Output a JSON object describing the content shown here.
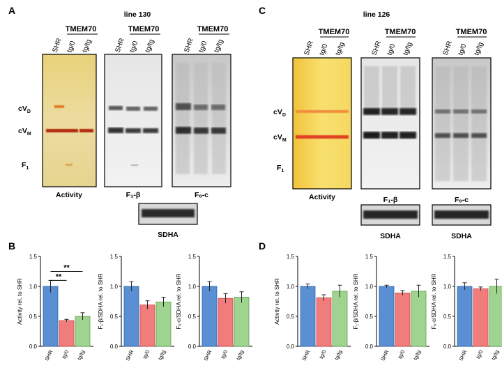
{
  "panel_A": {
    "letter": "A",
    "title": "line 130",
    "lane_group": "TMEM70",
    "lanes": [
      "SHR",
      "tg/0",
      "tg/tg"
    ],
    "band_labels": [
      "cV",
      "cV",
      "F"
    ],
    "band_subscripts": [
      "D",
      "M",
      "1"
    ],
    "blot_captions": [
      "Activity",
      "F₁-β",
      "Fₒ-c"
    ],
    "loading_caption": "SDHA"
  },
  "panel_C": {
    "letter": "C",
    "title": "line 126",
    "lane_group": "TMEM70",
    "lanes": [
      "SHR",
      "tg/0",
      "tg/tg"
    ],
    "band_labels": [
      "cV",
      "cV",
      "F"
    ],
    "band_subscripts": [
      "D",
      "M",
      "1"
    ],
    "blot_captions": [
      "Activity",
      "F₁-β",
      "Fₒ-c"
    ],
    "loading_caption": "SDHA"
  },
  "panel_B": {
    "letter": "B"
  },
  "panel_D": {
    "letter": "D"
  },
  "colors": {
    "SHR": "#5b8fd4",
    "tg0": "#f07c7c",
    "tgtg": "#9fd490",
    "activity_gel": "#f4d44a"
  },
  "chart_data": [
    {
      "type": "bar",
      "panel": "B",
      "categories": [
        "SHR",
        "tg/0",
        "tg/tg"
      ],
      "values": [
        1.0,
        0.43,
        0.5
      ],
      "errors": [
        0.1,
        0.02,
        0.06
      ],
      "ylabel": "Activity rel. to SHR",
      "ylim": [
        0,
        1.5
      ],
      "yticks": [
        "0.0",
        "0.5",
        "1.0",
        "1.5"
      ],
      "significance": [
        "**",
        "**"
      ]
    },
    {
      "type": "bar",
      "panel": "B",
      "categories": [
        "SHR",
        "tg/0",
        "tg/tg"
      ],
      "values": [
        1.0,
        0.69,
        0.74
      ],
      "errors": [
        0.08,
        0.07,
        0.08
      ],
      "ylabel": "F₁-β/SDHA rel. to SHR",
      "ylim": [
        0,
        1.5
      ],
      "yticks": [
        "0.0",
        "0.5",
        "1.0",
        "1.5"
      ]
    },
    {
      "type": "bar",
      "panel": "B",
      "categories": [
        "SHR",
        "tg/0",
        "tg/tg"
      ],
      "values": [
        1.0,
        0.8,
        0.82
      ],
      "errors": [
        0.08,
        0.08,
        0.09
      ],
      "ylabel": "Fₒ-c/SDHA rel. to SHR",
      "ylim": [
        0,
        1.5
      ],
      "yticks": [
        "0.0",
        "0.5",
        "1.0",
        "1.5"
      ]
    },
    {
      "type": "bar",
      "panel": "D",
      "categories": [
        "SHR",
        "tg/0",
        "tg/tg"
      ],
      "values": [
        1.0,
        0.81,
        0.92
      ],
      "errors": [
        0.04,
        0.05,
        0.1
      ],
      "ylabel": "Activity rel. to SHR",
      "ylim": [
        0,
        1.5
      ],
      "yticks": [
        "0.0",
        "0.5",
        "1.0",
        "1.5"
      ]
    },
    {
      "type": "bar",
      "panel": "D",
      "categories": [
        "SHR",
        "tg/0",
        "tg/tg"
      ],
      "values": [
        1.0,
        0.89,
        0.92
      ],
      "errors": [
        0.02,
        0.04,
        0.1
      ],
      "ylabel": "F₁-β/SDHA rel. to SHR",
      "ylim": [
        0,
        1.5
      ],
      "yticks": [
        "0.0",
        "0.5",
        "1.0",
        "1.5"
      ]
    },
    {
      "type": "bar",
      "panel": "D",
      "categories": [
        "SHR",
        "tg/0",
        "tg/tg"
      ],
      "values": [
        1.0,
        0.96,
        1.0
      ],
      "errors": [
        0.06,
        0.03,
        0.12
      ],
      "ylabel": "Fₒ-c/SDHA rel. to SHR",
      "ylim": [
        0,
        1.5
      ],
      "yticks": [
        "0.0",
        "0.5",
        "1.0",
        "1.5"
      ]
    }
  ]
}
